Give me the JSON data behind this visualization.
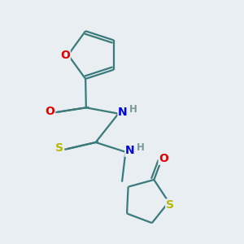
{
  "background_color": "#e8eef2",
  "bond_color": "#3a7a7a",
  "atom_colors": {
    "O": "#e00000",
    "N": "#0000e0",
    "S": "#b8b800",
    "H": "#7a9a9a",
    "C": "#3a7a7a"
  },
  "figsize": [
    3.0,
    3.0
  ],
  "dpi": 100,
  "lw": 1.6
}
